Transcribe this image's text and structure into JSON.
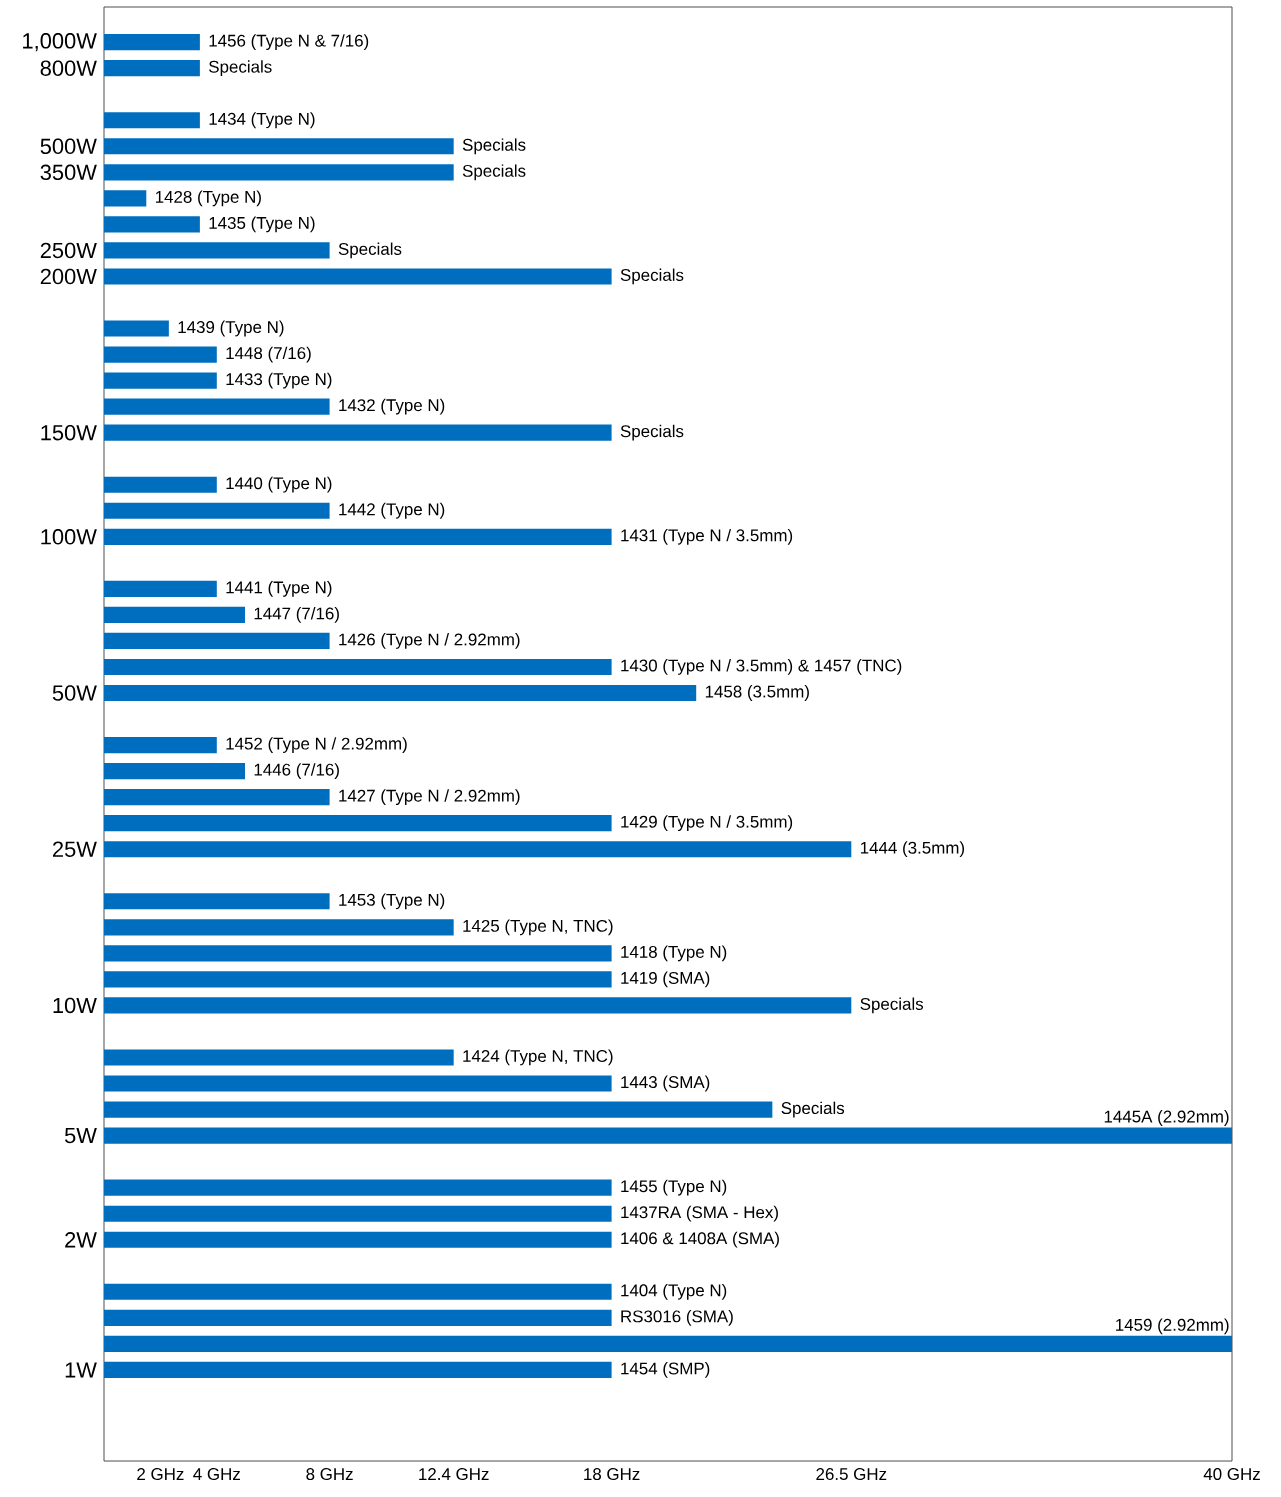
{
  "chart_data": {
    "type": "bar",
    "orientation": "horizontal",
    "color": "#006ebe",
    "categories": [
      "1,000W",
      "800W",
      null,
      null,
      "500W",
      "350W",
      null,
      null,
      "250W",
      "200W",
      null,
      null,
      null,
      null,
      null,
      "150W",
      null,
      null,
      null,
      "100W",
      null,
      null,
      null,
      null,
      null,
      "50W",
      null,
      null,
      null,
      null,
      null,
      "25W",
      null,
      null,
      null,
      null,
      null,
      "10W",
      null,
      null,
      null,
      null,
      "5W",
      null,
      null,
      null,
      "2W",
      null,
      null,
      null,
      null,
      "1W"
    ],
    "values": [
      3.4,
      3.4,
      null,
      3.4,
      12.4,
      12.4,
      1.5,
      3.4,
      8,
      18,
      null,
      2.3,
      4,
      4,
      8,
      18,
      null,
      4,
      8,
      18,
      null,
      4,
      5,
      8,
      18,
      21,
      null,
      4,
      5,
      8,
      18,
      26.5,
      null,
      8,
      12.4,
      18,
      18,
      26.5,
      null,
      12.4,
      18,
      23.7,
      40,
      null,
      18,
      18,
      18,
      null,
      18,
      18,
      40,
      18
    ],
    "annotations": [
      "1456 (Type N & 7/16)",
      "Specials",
      "1434 (Type N)",
      "Specials",
      "Specials",
      "1428 (Type N)",
      "1435 (Type N)",
      "Specials",
      "Specials",
      "1439 (Type N)",
      "1448 (7/16)",
      "1433 (Type N)",
      "1432 (Type N)",
      "Specials",
      "1440 (Type N)",
      "1442 (Type N)",
      "1431 (Type N / 3.5mm)",
      "1441 (Type N)",
      "1447 (7/16)",
      "1426 (Type N / 2.92mm)",
      "1430 (Type N / 3.5mm) & 1457 (TNC)",
      "1458 (3.5mm)",
      "1452 (Type N / 2.92mm)",
      "1446 (7/16)",
      "1427 (Type N / 2.92mm)",
      "1429 (Type N / 3.5mm)",
      "1444 (3.5mm)",
      "1453 (Type N)",
      "1425 (Type N, TNC)",
      "1418 (Type N)",
      "1419 (SMA)",
      "Specials",
      "1424 (Type N, TNC)",
      "1443 (SMA)",
      "Specials",
      "1445A (2.92mm)",
      "1455 (Type N)",
      "1437RA (SMA - Hex)",
      "1406 & 1408A (SMA)",
      "1404 (Type N)",
      "RS3016 (SMA)",
      "1459 (2.92mm)",
      "1454 (SMP)"
    ],
    "xlim": [
      0,
      40
    ],
    "xticks": [
      {
        "value": 2,
        "label": "2 GHz"
      },
      {
        "value": 4,
        "label": "4 GHz"
      },
      {
        "value": 8,
        "label": "8 GHz"
      },
      {
        "value": 12.4,
        "label": "12.4 GHz"
      },
      {
        "value": 18,
        "label": "18 GHz"
      },
      {
        "value": 26.5,
        "label": "26.5 GHz"
      },
      {
        "value": 40,
        "label": "40 GHz"
      }
    ]
  }
}
